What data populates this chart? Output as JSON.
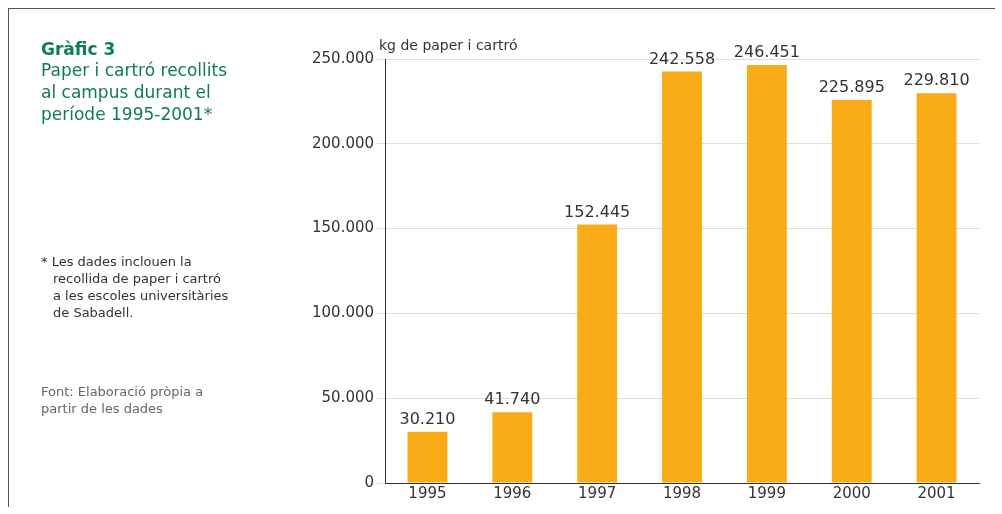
{
  "chart_data": {
    "type": "bar",
    "title": "Gràfic 3",
    "subtitle": "Paper i cartró recollits al campus durant el període 1995-2001*",
    "ylabel": "kg de paper i cartró",
    "categories": [
      "1995",
      "1996",
      "1997",
      "1998",
      "1999",
      "2000",
      "2001"
    ],
    "values": [
      30210,
      41740,
      152445,
      242558,
      246451,
      225895,
      229810
    ],
    "value_labels": [
      "30.210",
      "41.740",
      "152.445",
      "242.558",
      "246.451",
      "225.895",
      "229.810"
    ],
    "color": "#f9ab18",
    "ylim": [
      0,
      250000
    ],
    "yticks": [
      0,
      {
        "value": 50000,
        "label": "50.000"
      },
      {
        "value": 100000,
        "label": "100.000"
      },
      {
        "value": 150000,
        "label": "150.000"
      },
      {
        "value": 200000,
        "label": "200.000"
      },
      {
        "value": 250000,
        "label": "250.000"
      }
    ],
    "grid": "y",
    "legend": false,
    "annotations": [
      "* Les dades inclouen la recollida de paper i cartró a les escoles universitàries de Sabadell.",
      "Font: Elaboració pròpia a partir de les dades"
    ]
  }
}
